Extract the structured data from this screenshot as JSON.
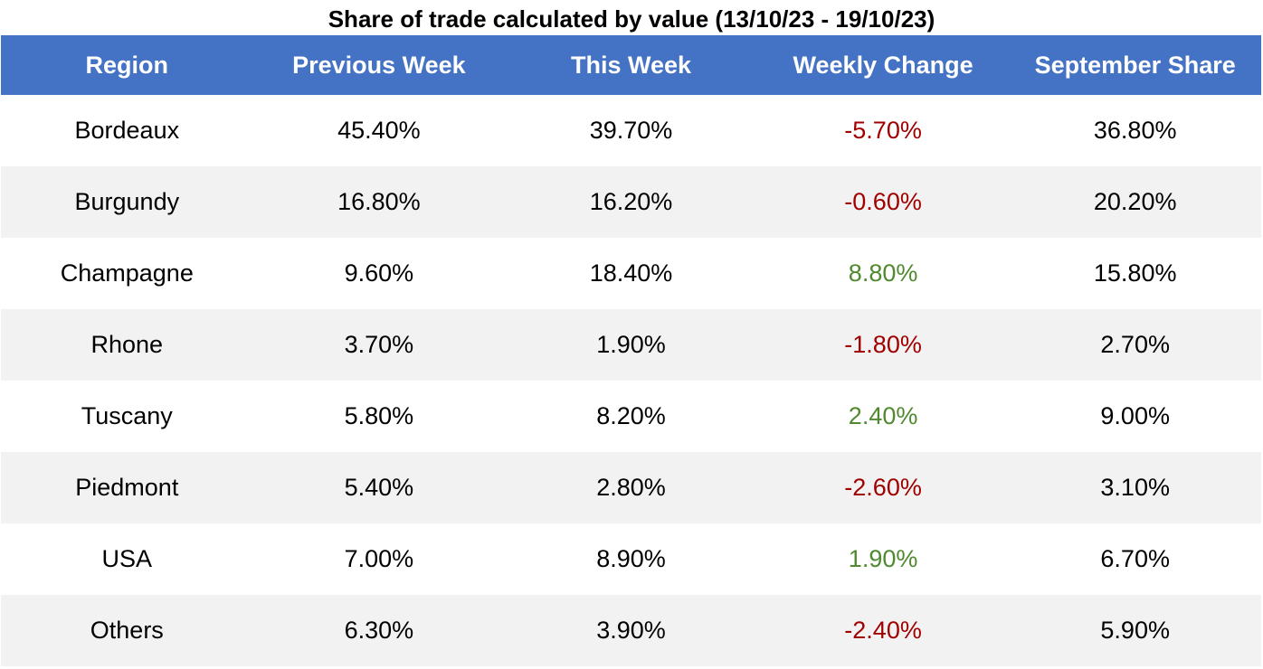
{
  "chart_data": {
    "type": "table",
    "title": "Share of trade calculated by value (13/10/23 - 19/10/23)",
    "columns": [
      "Region",
      "Previous Week",
      "This Week",
      "Weekly Change",
      "September Share"
    ],
    "rows": [
      {
        "region": "Bordeaux",
        "previous_week": "45.40%",
        "this_week": "39.70%",
        "weekly_change": "-5.70%",
        "change_sign": "negative",
        "september_share": "36.80%"
      },
      {
        "region": "Burgundy",
        "previous_week": "16.80%",
        "this_week": "16.20%",
        "weekly_change": "-0.60%",
        "change_sign": "negative",
        "september_share": "20.20%"
      },
      {
        "region": "Champagne",
        "previous_week": "9.60%",
        "this_week": "18.40%",
        "weekly_change": "8.80%",
        "change_sign": "positive",
        "september_share": "15.80%"
      },
      {
        "region": "Rhone",
        "previous_week": "3.70%",
        "this_week": "1.90%",
        "weekly_change": "-1.80%",
        "change_sign": "negative",
        "september_share": "2.70%"
      },
      {
        "region": "Tuscany",
        "previous_week": "5.80%",
        "this_week": "8.20%",
        "weekly_change": "2.40%",
        "change_sign": "positive",
        "september_share": "9.00%"
      },
      {
        "region": "Piedmont",
        "previous_week": "5.40%",
        "this_week": "2.80%",
        "weekly_change": "-2.60%",
        "change_sign": "negative",
        "september_share": "3.10%"
      },
      {
        "region": "USA",
        "previous_week": "7.00%",
        "this_week": "8.90%",
        "weekly_change": "1.90%",
        "change_sign": "positive",
        "september_share": "6.70%"
      },
      {
        "region": "Others",
        "previous_week": "6.30%",
        "this_week": "3.90%",
        "weekly_change": "-2.40%",
        "change_sign": "negative",
        "september_share": "5.90%"
      }
    ]
  },
  "colors": {
    "header_background": "#4472c4",
    "header_text": "#ffffff",
    "stripe": "#f2f2f2",
    "negative": "#a00000",
    "positive": "#4f8a2f"
  }
}
